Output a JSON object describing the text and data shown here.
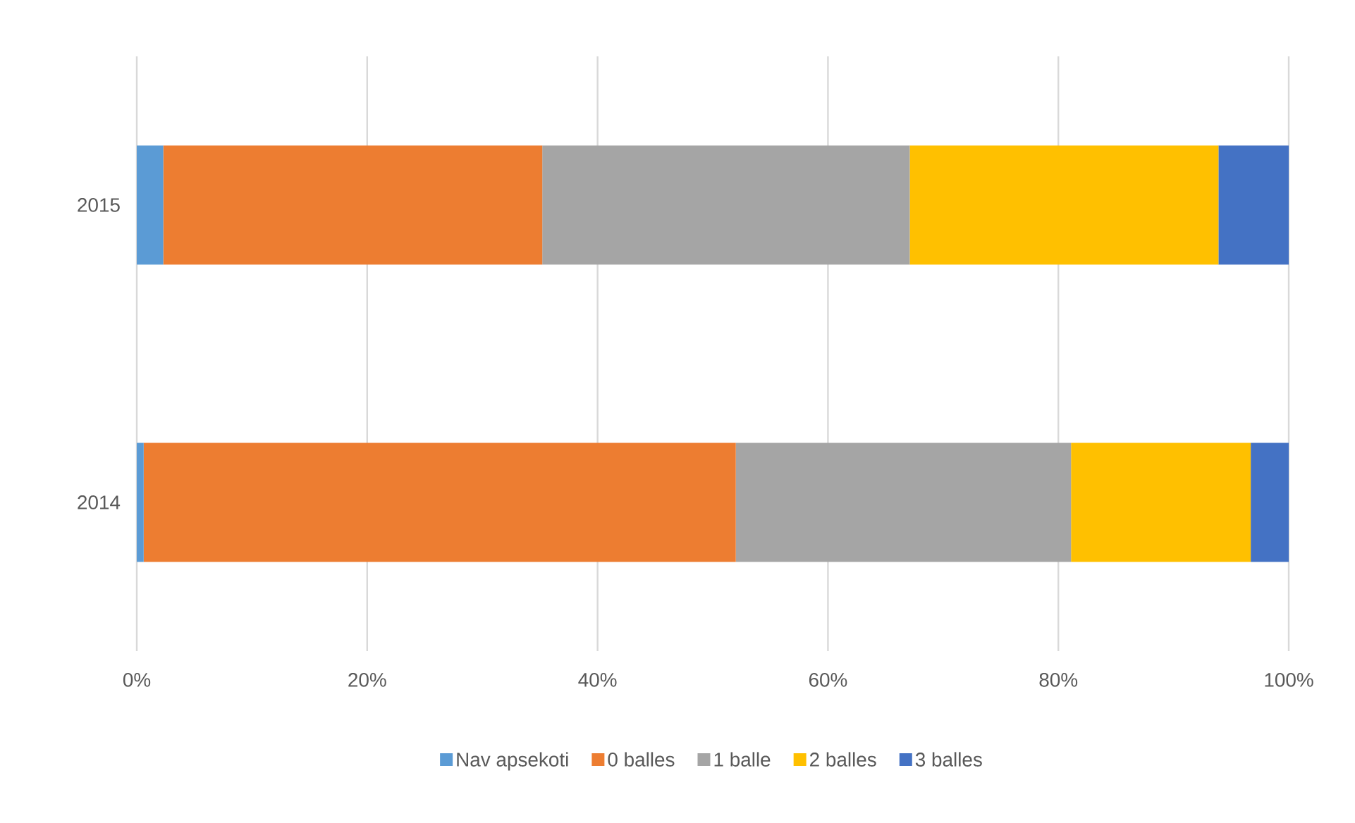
{
  "chart_data": {
    "type": "bar",
    "orientation": "horizontal",
    "stacked": true,
    "categories": [
      "2015",
      "2014"
    ],
    "series": [
      {
        "name": "Nav apsekoti",
        "color": "#5b9bd5",
        "values": [
          2.3,
          0.6
        ]
      },
      {
        "name": "0 balles",
        "color": "#ed7d31",
        "values": [
          32.9,
          51.4
        ]
      },
      {
        "name": "1 balle",
        "color": "#a5a5a5",
        "values": [
          31.9,
          29.1
        ]
      },
      {
        "name": "2 balles",
        "color": "#ffc000",
        "values": [
          26.8,
          15.6
        ]
      },
      {
        "name": "3 balles",
        "color": "#4472c4",
        "values": [
          6.1,
          3.3
        ]
      }
    ],
    "xlim": [
      0,
      100
    ],
    "xticks": [
      {
        "value": 0,
        "label": "0%"
      },
      {
        "value": 20,
        "label": "20%"
      },
      {
        "value": 40,
        "label": "40%"
      },
      {
        "value": 60,
        "label": "60%"
      },
      {
        "value": 80,
        "label": "80%"
      },
      {
        "value": 100,
        "label": "100%"
      }
    ],
    "grid": "x",
    "legend": "bottom"
  }
}
